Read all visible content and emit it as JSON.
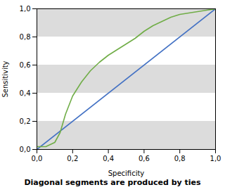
{
  "chart_data": {
    "type": "line",
    "subtitle": "Diagonal segments are produced by ties",
    "xlabel": "Specificity",
    "ylabel": "Sensitivity",
    "xlim": [
      0,
      1
    ],
    "ylim": [
      0,
      1
    ],
    "xticks": [
      {
        "value": 0.0,
        "label": "0,0"
      },
      {
        "value": 0.2,
        "label": "0,2"
      },
      {
        "value": 0.4,
        "label": "0,4"
      },
      {
        "value": 0.6,
        "label": "0,6"
      },
      {
        "value": 0.8,
        "label": "0,8"
      },
      {
        "value": 1.0,
        "label": "1,0"
      }
    ],
    "yticks": [
      {
        "value": 0.0,
        "label": "0,0"
      },
      {
        "value": 0.2,
        "label": "0,2"
      },
      {
        "value": 0.4,
        "label": "0,4"
      },
      {
        "value": 0.6,
        "label": "0,6"
      },
      {
        "value": 0.8,
        "label": "0,8"
      },
      {
        "value": 1.0,
        "label": "1,0"
      }
    ],
    "grid": false,
    "bands": {
      "ranges": [
        [
          0.0,
          0.2
        ],
        [
          0.4,
          0.6
        ],
        [
          0.8,
          1.0
        ]
      ],
      "color": "#DCDCDC"
    },
    "series": [
      {
        "color": "#4472C4",
        "x": [
          0.0,
          1.0
        ],
        "values": [
          0.0,
          1.0
        ]
      },
      {
        "color": "#70AD47",
        "x": [
          0.0,
          0.05,
          0.1,
          0.13,
          0.16,
          0.2,
          0.25,
          0.3,
          0.35,
          0.4,
          0.45,
          0.5,
          0.55,
          0.6,
          0.65,
          0.7,
          0.75,
          0.8,
          0.85,
          0.9,
          0.95,
          1.0
        ],
        "values": [
          0.02,
          0.02,
          0.05,
          0.12,
          0.25,
          0.38,
          0.48,
          0.56,
          0.62,
          0.67,
          0.71,
          0.75,
          0.79,
          0.84,
          0.88,
          0.91,
          0.94,
          0.96,
          0.97,
          0.98,
          0.99,
          1.0
        ]
      }
    ]
  }
}
